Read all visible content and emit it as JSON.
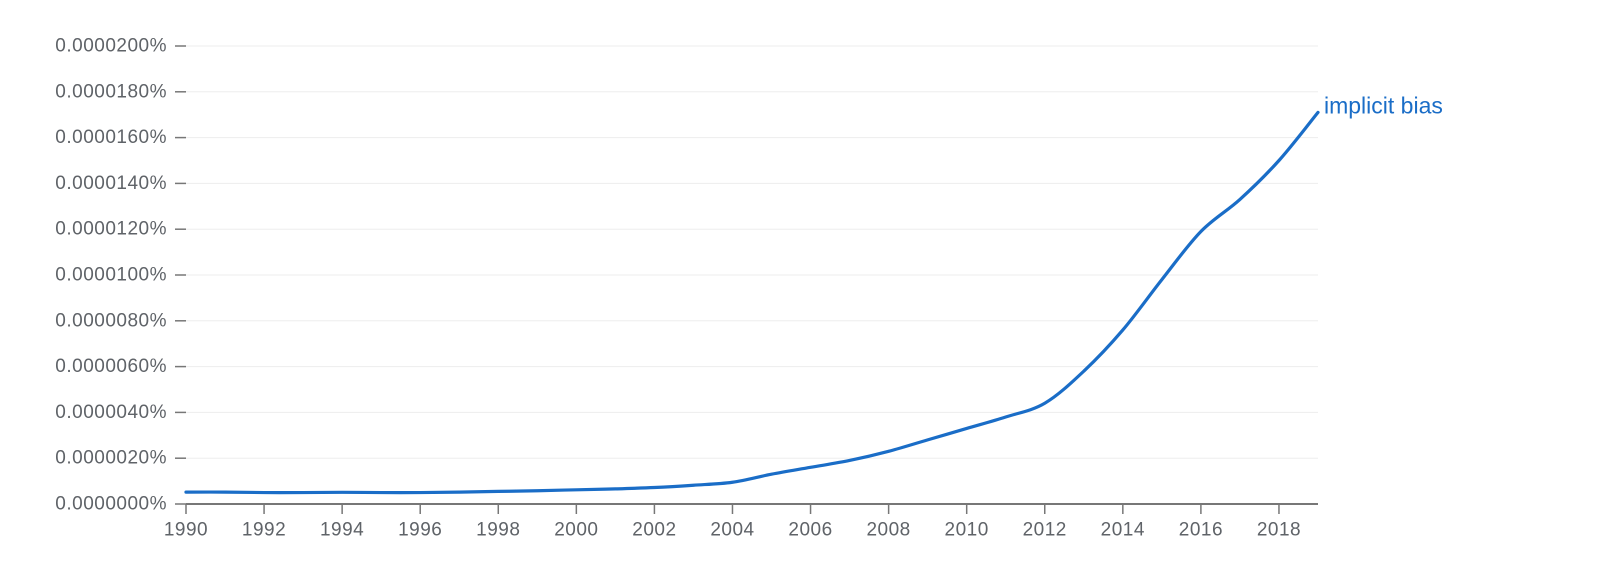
{
  "chart_data": {
    "type": "line",
    "title": "",
    "xlabel": "",
    "ylabel": "",
    "xlim": [
      1990,
      2019
    ],
    "ylim": [
      0,
      2e-05
    ],
    "grid": true,
    "legend": "inline-right-end",
    "y_ticks": [
      {
        "value": 0.0,
        "label": "0.0000000%"
      },
      {
        "value": 2e-06,
        "label": "0.0000020%"
      },
      {
        "value": 4e-06,
        "label": "0.0000040%"
      },
      {
        "value": 6e-06,
        "label": "0.0000060%"
      },
      {
        "value": 8e-06,
        "label": "0.0000080%"
      },
      {
        "value": 1e-05,
        "label": "0.0000100%"
      },
      {
        "value": 1.2e-05,
        "label": "0.0000120%"
      },
      {
        "value": 1.4e-05,
        "label": "0.0000140%"
      },
      {
        "value": 1.6e-05,
        "label": "0.0000160%"
      },
      {
        "value": 1.8e-05,
        "label": "0.0000180%"
      },
      {
        "value": 2e-05,
        "label": "0.0000200%"
      }
    ],
    "x_ticks": [
      {
        "value": 1990,
        "label": "1990"
      },
      {
        "value": 1992,
        "label": "1992"
      },
      {
        "value": 1994,
        "label": "1994"
      },
      {
        "value": 1996,
        "label": "1996"
      },
      {
        "value": 1998,
        "label": "1998"
      },
      {
        "value": 2000,
        "label": "2000"
      },
      {
        "value": 2002,
        "label": "2002"
      },
      {
        "value": 2004,
        "label": "2004"
      },
      {
        "value": 2006,
        "label": "2006"
      },
      {
        "value": 2008,
        "label": "2008"
      },
      {
        "value": 2010,
        "label": "2010"
      },
      {
        "value": 2012,
        "label": "2012"
      },
      {
        "value": 2014,
        "label": "2014"
      },
      {
        "value": 2016,
        "label": "2016"
      },
      {
        "value": 2018,
        "label": "2018"
      }
    ],
    "series": [
      {
        "name": "implicit bias",
        "color": "#1a6dc7",
        "x": [
          1990,
          1991,
          1992,
          1993,
          1994,
          1995,
          1996,
          1997,
          1998,
          1999,
          2000,
          2001,
          2002,
          2003,
          2004,
          2005,
          2006,
          2007,
          2008,
          2009,
          2010,
          2011,
          2012,
          2013,
          2014,
          2015,
          2016,
          2017,
          2018,
          2019
        ],
        "values": [
          5.2e-07,
          5.2e-07,
          5e-07,
          5e-07,
          5.1e-07,
          5e-07,
          5e-07,
          5.2e-07,
          5.5e-07,
          5.8e-07,
          6.2e-07,
          6.6e-07,
          7.2e-07,
          8.2e-07,
          9.5e-07,
          1.3e-06,
          1.6e-06,
          1.9e-06,
          2.3e-06,
          2.8e-06,
          3.3e-06,
          3.8e-06,
          4.4e-06,
          5.8e-06,
          7.6e-06,
          9.8e-06,
          1.19e-05,
          1.33e-05,
          1.5e-05,
          1.71e-05
        ]
      }
    ]
  }
}
